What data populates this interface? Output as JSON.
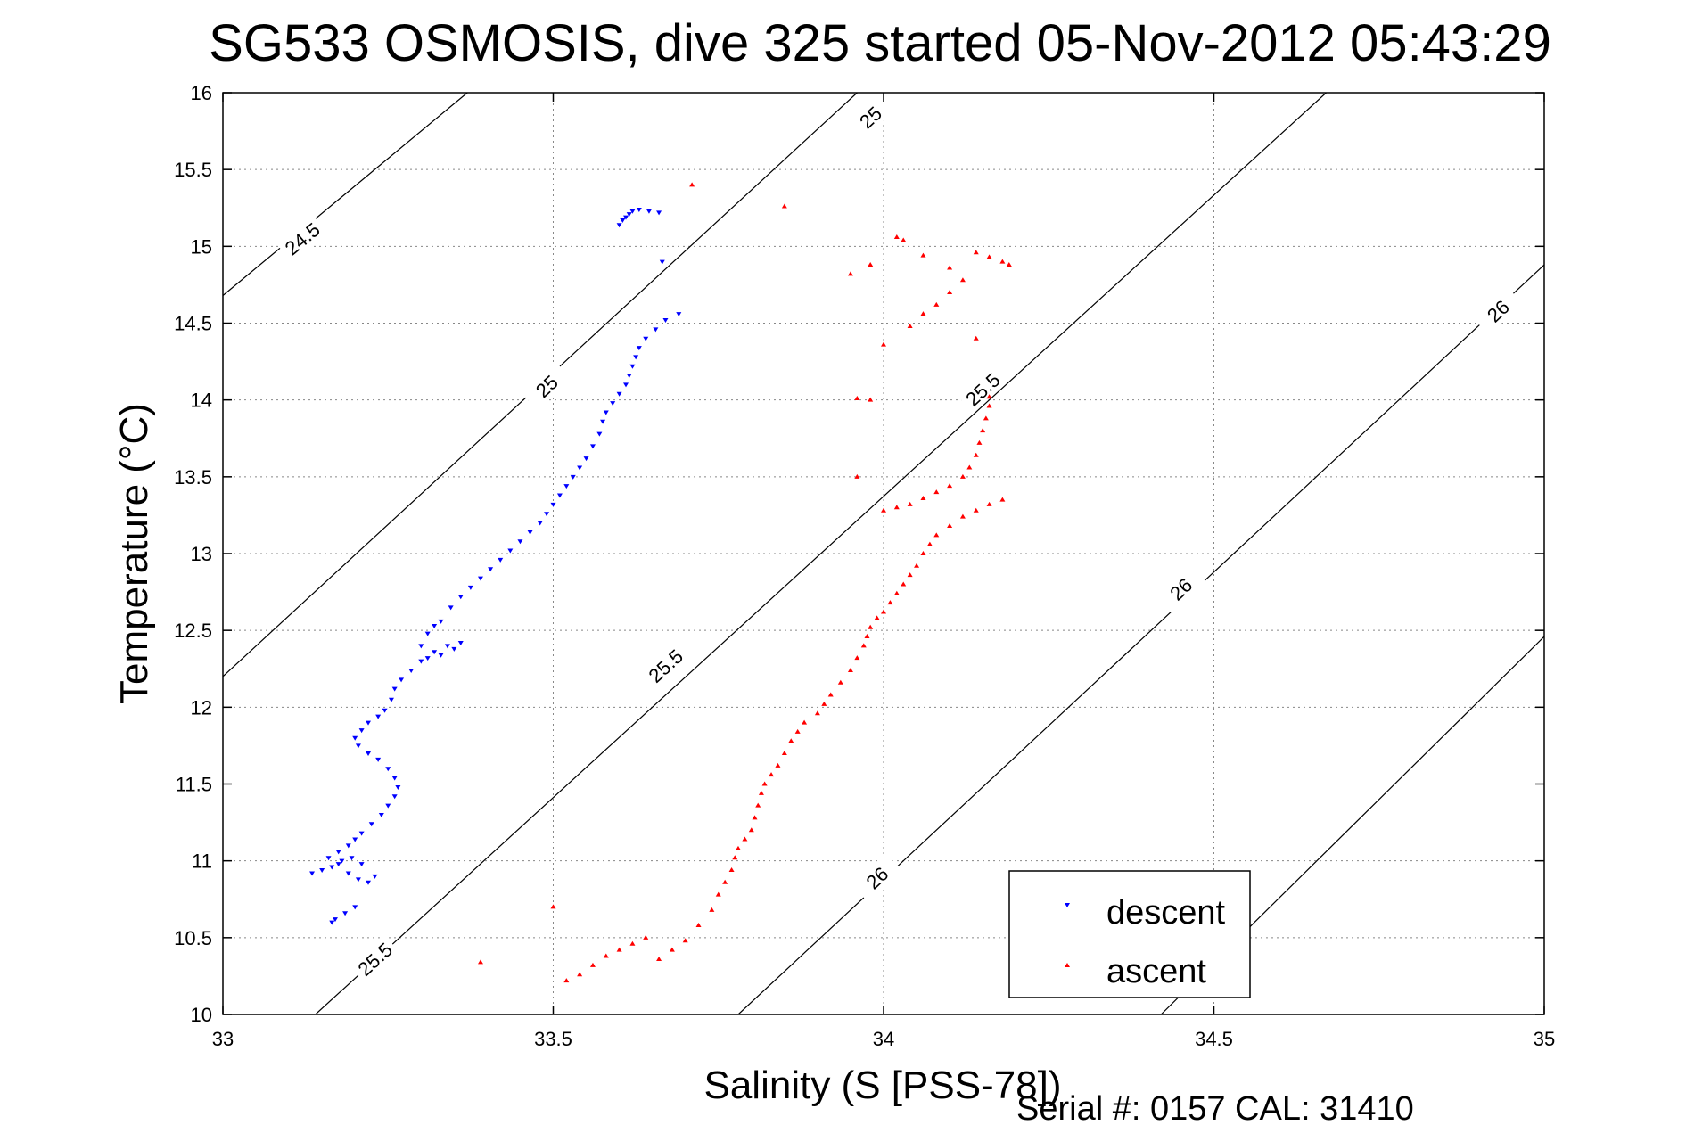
{
  "chart_data": {
    "type": "scatter",
    "title": "SG533 OSMOSIS, dive 325 started 05-Nov-2012 05:43:29",
    "xlabel": "Salinity (S [PSS-78])",
    "ylabel": "Temperature (°C)",
    "xlim": [
      33,
      35
    ],
    "ylim": [
      10,
      16
    ],
    "xticks": [
      33,
      33.5,
      34,
      34.5,
      35
    ],
    "xtick_labels": [
      "33",
      "33.5",
      "34",
      "34.5",
      "35"
    ],
    "yticks": [
      10,
      10.5,
      11,
      11.5,
      12,
      12.5,
      13,
      13.5,
      14,
      14.5,
      15,
      15.5,
      16
    ],
    "ytick_labels": [
      "10",
      "10.5",
      "11",
      "11.5",
      "12",
      "12.5",
      "13",
      "13.5",
      "14",
      "14.5",
      "15",
      "15.5",
      "16"
    ],
    "grid": true,
    "legend_position": "bottom-right",
    "density_contours": [
      {
        "points": [
          [
            33.0,
            14.68
          ],
          [
            33.37,
            16.0
          ]
        ],
        "labels": [
          {
            "text": "24.5",
            "at": [
              33.12,
              15.05
            ]
          }
        ]
      },
      {
        "points": [
          [
            33.0,
            12.2
          ],
          [
            33.96,
            16.0
          ]
        ],
        "labels": [
          {
            "text": "25",
            "at": [
              33.49,
              14.09
            ]
          },
          {
            "text": "25",
            "at": [
              33.98,
              15.84
            ]
          }
        ]
      },
      {
        "points": [
          [
            33.14,
            10.0
          ],
          [
            34.67,
            16.0
          ]
        ],
        "labels": [
          {
            "text": "25.5",
            "at": [
              33.23,
              10.36
            ]
          },
          {
            "text": "25.5",
            "at": [
              33.67,
              12.27
            ]
          },
          {
            "text": "25.5",
            "at": [
              34.15,
              14.07
            ]
          }
        ]
      },
      {
        "points": [
          [
            33.78,
            10.0
          ],
          [
            35.0,
            14.88
          ]
        ],
        "labels": [
          {
            "text": "26",
            "at": [
              33.99,
              10.89
            ]
          },
          {
            "text": "26",
            "at": [
              34.45,
              12.77
            ]
          },
          {
            "text": "26",
            "at": [
              34.93,
              14.58
            ]
          }
        ]
      },
      {
        "points": [
          [
            34.42,
            10.0
          ],
          [
            35.0,
            12.46
          ]
        ],
        "labels": []
      }
    ],
    "series": [
      {
        "name": "descent",
        "color": "#0000ff",
        "marker": "triangle-down",
        "points": [
          [
            33.165,
            10.6
          ],
          [
            33.17,
            10.62
          ],
          [
            33.185,
            10.66
          ],
          [
            33.2,
            10.7
          ],
          [
            33.135,
            10.92
          ],
          [
            33.15,
            10.94
          ],
          [
            33.165,
            10.96
          ],
          [
            33.18,
            11.0
          ],
          [
            33.195,
            11.02
          ],
          [
            33.21,
            10.98
          ],
          [
            33.23,
            10.9
          ],
          [
            33.22,
            10.86
          ],
          [
            33.205,
            10.88
          ],
          [
            33.19,
            10.92
          ],
          [
            33.175,
            10.98
          ],
          [
            33.16,
            11.02
          ],
          [
            33.175,
            11.06
          ],
          [
            33.19,
            11.1
          ],
          [
            33.2,
            11.14
          ],
          [
            33.21,
            11.18
          ],
          [
            33.225,
            11.24
          ],
          [
            33.24,
            11.3
          ],
          [
            33.25,
            11.36
          ],
          [
            33.26,
            11.42
          ],
          [
            33.265,
            11.48
          ],
          [
            33.26,
            11.54
          ],
          [
            33.25,
            11.6
          ],
          [
            33.235,
            11.66
          ],
          [
            33.22,
            11.7
          ],
          [
            33.205,
            11.75
          ],
          [
            33.2,
            11.8
          ],
          [
            33.21,
            11.85
          ],
          [
            33.22,
            11.9
          ],
          [
            33.235,
            11.94
          ],
          [
            33.245,
            11.98
          ],
          [
            33.255,
            12.05
          ],
          [
            33.26,
            12.12
          ],
          [
            33.27,
            12.18
          ],
          [
            33.285,
            12.24
          ],
          [
            33.3,
            12.3
          ],
          [
            33.32,
            12.36
          ],
          [
            33.34,
            12.4
          ],
          [
            33.36,
            12.42
          ],
          [
            33.35,
            12.38
          ],
          [
            33.33,
            12.34
          ],
          [
            33.31,
            12.32
          ],
          [
            33.3,
            12.4
          ],
          [
            33.31,
            12.48
          ],
          [
            33.32,
            12.53
          ],
          [
            33.33,
            12.56
          ],
          [
            33.345,
            12.65
          ],
          [
            33.36,
            12.72
          ],
          [
            33.375,
            12.78
          ],
          [
            33.39,
            12.84
          ],
          [
            33.405,
            12.9
          ],
          [
            33.42,
            12.96
          ],
          [
            33.435,
            13.02
          ],
          [
            33.45,
            13.08
          ],
          [
            33.465,
            13.14
          ],
          [
            33.48,
            13.2
          ],
          [
            33.49,
            13.26
          ],
          [
            33.5,
            13.32
          ],
          [
            33.51,
            13.38
          ],
          [
            33.52,
            13.44
          ],
          [
            33.53,
            13.5
          ],
          [
            33.54,
            13.56
          ],
          [
            33.55,
            13.62
          ],
          [
            33.56,
            13.7
          ],
          [
            33.57,
            13.78
          ],
          [
            33.575,
            13.86
          ],
          [
            33.58,
            13.92
          ],
          [
            33.59,
            13.98
          ],
          [
            33.6,
            14.04
          ],
          [
            33.61,
            14.1
          ],
          [
            33.615,
            14.16
          ],
          [
            33.62,
            14.22
          ],
          [
            33.625,
            14.28
          ],
          [
            33.63,
            14.34
          ],
          [
            33.64,
            14.4
          ],
          [
            33.655,
            14.46
          ],
          [
            33.67,
            14.52
          ],
          [
            33.69,
            14.56
          ],
          [
            33.6,
            15.14
          ],
          [
            33.605,
            15.17
          ],
          [
            33.61,
            15.19
          ],
          [
            33.615,
            15.21
          ],
          [
            33.62,
            15.23
          ],
          [
            33.63,
            15.24
          ],
          [
            33.645,
            15.23
          ],
          [
            33.66,
            15.22
          ],
          [
            33.665,
            14.9
          ]
        ]
      },
      {
        "name": "ascent",
        "color": "#ff0000",
        "marker": "triangle-up",
        "points": [
          [
            33.52,
            10.22
          ],
          [
            33.54,
            10.26
          ],
          [
            33.56,
            10.32
          ],
          [
            33.58,
            10.38
          ],
          [
            33.6,
            10.42
          ],
          [
            33.62,
            10.46
          ],
          [
            33.64,
            10.5
          ],
          [
            33.66,
            10.36
          ],
          [
            33.68,
            10.42
          ],
          [
            33.7,
            10.48
          ],
          [
            33.72,
            10.58
          ],
          [
            33.74,
            10.68
          ],
          [
            33.75,
            10.78
          ],
          [
            33.76,
            10.86
          ],
          [
            33.77,
            10.94
          ],
          [
            33.775,
            11.02
          ],
          [
            33.78,
            11.08
          ],
          [
            33.79,
            11.14
          ],
          [
            33.8,
            11.2
          ],
          [
            33.805,
            11.28
          ],
          [
            33.81,
            11.36
          ],
          [
            33.815,
            11.44
          ],
          [
            33.82,
            11.5
          ],
          [
            33.83,
            11.56
          ],
          [
            33.84,
            11.62
          ],
          [
            33.85,
            11.7
          ],
          [
            33.86,
            11.78
          ],
          [
            33.87,
            11.84
          ],
          [
            33.88,
            11.9
          ],
          [
            33.9,
            11.96
          ],
          [
            33.91,
            12.02
          ],
          [
            33.92,
            12.08
          ],
          [
            33.935,
            12.16
          ],
          [
            33.95,
            12.24
          ],
          [
            33.96,
            12.32
          ],
          [
            33.97,
            12.4
          ],
          [
            33.975,
            12.46
          ],
          [
            33.98,
            12.52
          ],
          [
            33.99,
            12.58
          ],
          [
            34.0,
            12.62
          ],
          [
            34.01,
            12.68
          ],
          [
            34.02,
            12.74
          ],
          [
            34.03,
            12.8
          ],
          [
            34.04,
            12.86
          ],
          [
            34.05,
            12.92
          ],
          [
            34.06,
            13.0
          ],
          [
            34.07,
            13.06
          ],
          [
            34.08,
            13.12
          ],
          [
            34.1,
            13.18
          ],
          [
            34.12,
            13.24
          ],
          [
            34.14,
            13.28
          ],
          [
            34.16,
            13.32
          ],
          [
            34.18,
            13.35
          ],
          [
            34.0,
            13.28
          ],
          [
            34.02,
            13.3
          ],
          [
            34.04,
            13.32
          ],
          [
            34.06,
            13.36
          ],
          [
            34.08,
            13.4
          ],
          [
            34.1,
            13.44
          ],
          [
            34.12,
            13.5
          ],
          [
            34.13,
            13.56
          ],
          [
            34.14,
            13.64
          ],
          [
            34.145,
            13.72
          ],
          [
            34.15,
            13.8
          ],
          [
            34.155,
            13.88
          ],
          [
            34.16,
            13.96
          ],
          [
            34.16,
            14.02
          ],
          [
            33.96,
            14.01
          ],
          [
            33.98,
            14.0
          ],
          [
            33.96,
            13.5
          ],
          [
            34.0,
            14.36
          ],
          [
            34.04,
            14.48
          ],
          [
            34.06,
            14.56
          ],
          [
            34.08,
            14.62
          ],
          [
            34.1,
            14.7
          ],
          [
            34.12,
            14.78
          ],
          [
            34.1,
            14.86
          ],
          [
            34.06,
            14.94
          ],
          [
            34.03,
            15.04
          ],
          [
            34.02,
            15.06
          ],
          [
            33.98,
            14.88
          ],
          [
            33.95,
            14.82
          ],
          [
            34.14,
            14.96
          ],
          [
            34.16,
            14.93
          ],
          [
            34.18,
            14.9
          ],
          [
            34.19,
            14.88
          ],
          [
            34.14,
            14.4
          ],
          [
            33.71,
            15.4
          ],
          [
            33.85,
            15.26
          ],
          [
            33.5,
            10.7
          ],
          [
            33.39,
            10.34
          ]
        ]
      }
    ]
  },
  "footer_text": "Serial #: 0157  CAL: 31410"
}
